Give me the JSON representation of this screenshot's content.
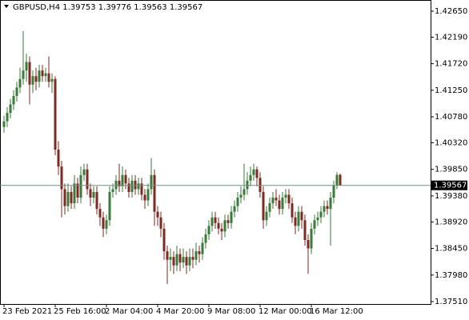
{
  "chart_data": {
    "type": "candlestick",
    "title": "GBPUSD,H4  1.39753 1.39776 1.39563 1.39567",
    "up_color": "#3a7a3a",
    "down_color": "#7e2a22",
    "current_price": 1.39567,
    "current_price_color": "#6f8f86",
    "ylim": [
      1.37467,
      1.42848
    ],
    "yticks": [
      {
        "value": 1.3751,
        "label": "1.37510"
      },
      {
        "value": 1.3798,
        "label": "1.37980"
      },
      {
        "value": 1.3845,
        "label": "1.38450"
      },
      {
        "value": 1.3892,
        "label": "1.38920"
      },
      {
        "value": 1.3938,
        "label": "1.39380"
      },
      {
        "value": 1.3985,
        "label": "1.39850"
      },
      {
        "value": 1.4032,
        "label": "1.40320"
      },
      {
        "value": 1.4078,
        "label": "1.40780"
      },
      {
        "value": 1.4125,
        "label": "1.41250"
      },
      {
        "value": 1.4172,
        "label": "1.41720"
      },
      {
        "value": 1.4219,
        "label": "1.42190"
      },
      {
        "value": 1.4265,
        "label": "1.42650"
      }
    ],
    "categories": [
      "23 Feb 2021",
      null,
      null,
      null,
      null,
      null,
      null,
      null,
      null,
      null,
      null,
      null,
      null,
      null,
      null,
      null,
      "25 Feb 16:00",
      null,
      null,
      null,
      null,
      null,
      null,
      null,
      null,
      null,
      null,
      null,
      null,
      null,
      null,
      null,
      "2 Mar 04:00",
      null,
      null,
      null,
      null,
      null,
      null,
      null,
      null,
      null,
      null,
      null,
      null,
      null,
      null,
      null,
      "4 Mar 20:00",
      null,
      null,
      null,
      null,
      null,
      null,
      null,
      null,
      null,
      null,
      null,
      null,
      null,
      null,
      null,
      "9 Mar 08:00",
      null,
      null,
      null,
      null,
      null,
      null,
      null,
      null,
      null,
      null,
      null,
      null,
      null,
      null,
      null,
      "12 Mar 00:00",
      null,
      null,
      null,
      null,
      null,
      null,
      null,
      null,
      null,
      null,
      null,
      null,
      null,
      null,
      null,
      "16 Mar 12:00",
      null,
      null,
      null,
      null,
      null,
      null,
      null,
      null,
      null
    ],
    "open": [
      1.406,
      1.407,
      1.4085,
      1.41,
      1.4115,
      1.413,
      1.4145,
      1.416,
      1.4175,
      1.4135,
      1.415,
      1.414,
      1.416,
      1.415,
      1.4155,
      1.414,
      1.4145,
      1.402,
      1.399,
      1.395,
      1.392,
      1.3945,
      1.3925,
      1.396,
      1.3935,
      1.3975,
      1.3985,
      1.395,
      1.3935,
      1.3945,
      1.3915,
      1.39,
      1.388,
      1.3895,
      1.3945,
      1.395,
      1.3965,
      1.3955,
      1.3975,
      1.396,
      1.3945,
      1.3965,
      1.395,
      1.396,
      1.394,
      1.393,
      1.395,
      1.3975,
      1.391,
      1.39,
      1.388,
      1.384,
      1.3825,
      1.383,
      1.3815,
      1.3835,
      1.382,
      1.383,
      1.3815,
      1.383,
      1.3825,
      1.384,
      1.3835,
      1.3855,
      1.387,
      1.3885,
      1.39,
      1.389,
      1.388,
      1.3875,
      1.3895,
      1.389,
      1.391,
      1.392,
      1.3935,
      1.394,
      1.395,
      1.3965,
      1.3975,
      1.3985,
      1.397,
      1.3945,
      1.3895,
      1.391,
      1.3925,
      1.3935,
      1.393,
      1.3915,
      1.3935,
      1.394,
      1.3925,
      1.39,
      1.3885,
      1.391,
      1.3895,
      1.386,
      1.3845,
      1.388,
      1.3895,
      1.39,
      1.391,
      1.392,
      1.3915,
      1.3935,
      1.3957,
      1.39753
    ],
    "high": [
      1.408,
      1.4095,
      1.411,
      1.4125,
      1.414,
      1.4165,
      1.423,
      1.419,
      1.4185,
      1.416,
      1.4165,
      1.417,
      1.417,
      1.4165,
      1.4185,
      1.4155,
      1.415,
      1.4035,
      1.4,
      1.396,
      1.396,
      1.3955,
      1.3975,
      1.397,
      1.399,
      1.3995,
      1.3995,
      1.396,
      1.3955,
      1.3955,
      1.3925,
      1.391,
      1.3905,
      1.3955,
      1.396,
      1.3975,
      1.3995,
      1.399,
      1.3985,
      1.397,
      1.3975,
      1.3975,
      1.397,
      1.397,
      1.395,
      1.396,
      1.4005,
      1.3985,
      1.392,
      1.391,
      1.389,
      1.385,
      1.3845,
      1.384,
      1.385,
      1.3845,
      1.3845,
      1.384,
      1.3845,
      1.3845,
      1.3855,
      1.385,
      1.3865,
      1.388,
      1.3895,
      1.391,
      1.391,
      1.39,
      1.389,
      1.3905,
      1.3905,
      1.392,
      1.393,
      1.3945,
      1.3955,
      1.3995,
      1.398,
      1.399,
      1.3995,
      1.399,
      1.398,
      1.3955,
      1.392,
      1.3935,
      1.3945,
      1.395,
      1.394,
      1.3945,
      1.395,
      1.395,
      1.3935,
      1.391,
      1.392,
      1.392,
      1.3905,
      1.387,
      1.389,
      1.3905,
      1.391,
      1.392,
      1.393,
      1.393,
      1.3945,
      1.3965,
      1.398,
      1.39776
    ],
    "low": [
      1.405,
      1.406,
      1.4075,
      1.409,
      1.4105,
      1.412,
      1.4135,
      1.414,
      1.41,
      1.412,
      1.4125,
      1.413,
      1.414,
      1.414,
      1.413,
      1.412,
      1.401,
      1.3975,
      1.39,
      1.3905,
      1.391,
      1.3915,
      1.3915,
      1.3925,
      1.3925,
      1.3965,
      1.394,
      1.392,
      1.3925,
      1.3905,
      1.3885,
      1.3865,
      1.387,
      1.3885,
      1.3935,
      1.394,
      1.3945,
      1.3945,
      1.395,
      1.3935,
      1.3935,
      1.394,
      1.394,
      1.393,
      1.3915,
      1.392,
      1.394,
      1.3885,
      1.3885,
      1.3865,
      1.3825,
      1.3782,
      1.3805,
      1.38,
      1.3805,
      1.3805,
      1.381,
      1.38,
      1.3805,
      1.381,
      1.3815,
      1.382,
      1.3825,
      1.3845,
      1.386,
      1.3875,
      1.388,
      1.387,
      1.386,
      1.3865,
      1.388,
      1.388,
      1.39,
      1.391,
      1.3925,
      1.393,
      1.394,
      1.3955,
      1.3965,
      1.3955,
      1.3935,
      1.388,
      1.3885,
      1.39,
      1.3915,
      1.392,
      1.3905,
      1.3905,
      1.3925,
      1.3915,
      1.389,
      1.387,
      1.3875,
      1.388,
      1.385,
      1.38,
      1.3835,
      1.387,
      1.3885,
      1.389,
      1.39,
      1.3905,
      1.385,
      1.3925,
      1.395,
      1.39563
    ],
    "close": [
      1.407,
      1.4085,
      1.41,
      1.4115,
      1.413,
      1.4145,
      1.416,
      1.4175,
      1.4135,
      1.415,
      1.414,
      1.416,
      1.415,
      1.4155,
      1.414,
      1.4145,
      1.402,
      1.399,
      1.395,
      1.392,
      1.3945,
      1.3925,
      1.396,
      1.3935,
      1.3975,
      1.3985,
      1.395,
      1.3935,
      1.3945,
      1.3915,
      1.39,
      1.388,
      1.3895,
      1.3945,
      1.395,
      1.3965,
      1.3955,
      1.3975,
      1.396,
      1.3945,
      1.3965,
      1.395,
      1.396,
      1.394,
      1.393,
      1.395,
      1.3975,
      1.391,
      1.39,
      1.388,
      1.384,
      1.3825,
      1.383,
      1.3815,
      1.3835,
      1.382,
      1.383,
      1.3815,
      1.383,
      1.3825,
      1.384,
      1.3835,
      1.3855,
      1.387,
      1.3885,
      1.39,
      1.389,
      1.388,
      1.3875,
      1.3895,
      1.389,
      1.391,
      1.392,
      1.3935,
      1.394,
      1.395,
      1.3965,
      1.3975,
      1.3985,
      1.397,
      1.3945,
      1.3895,
      1.391,
      1.3925,
      1.3935,
      1.393,
      1.3915,
      1.3935,
      1.394,
      1.3925,
      1.39,
      1.3885,
      1.391,
      1.3895,
      1.386,
      1.3845,
      1.388,
      1.3895,
      1.39,
      1.391,
      1.392,
      1.3915,
      1.3935,
      1.3957,
      1.39753,
      1.39567
    ]
  }
}
